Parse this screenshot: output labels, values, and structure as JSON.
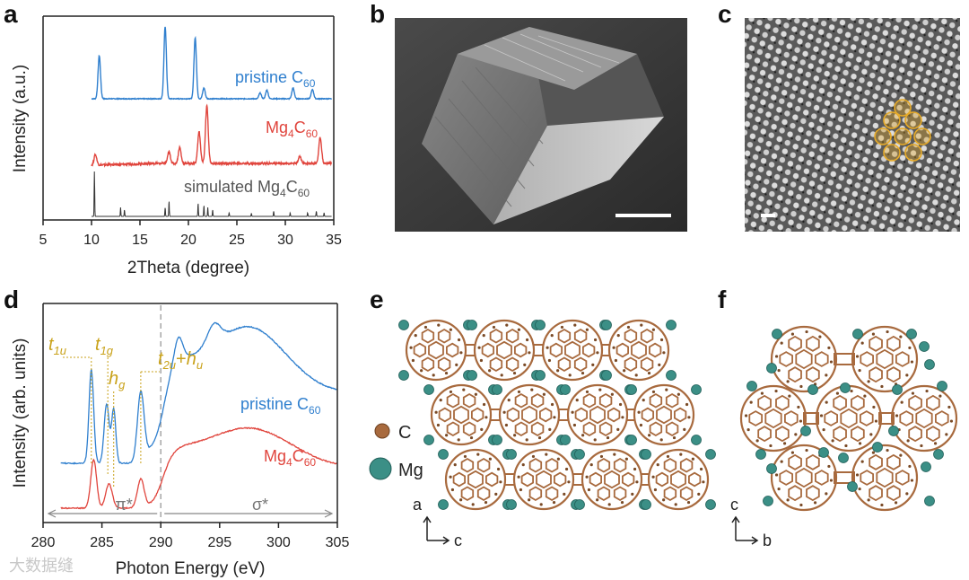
{
  "panels": {
    "a": "a",
    "b": "b",
    "c": "c",
    "d": "d",
    "e": "e",
    "f": "f"
  },
  "colors": {
    "pristine": "#2f7fce",
    "mg4c60": "#e0443c",
    "simulated": "#333333",
    "annotation": "#c9a21a",
    "carbon": "#a86a3e",
    "magnesium": "#3b8f86"
  },
  "chart_a": {
    "type": "line",
    "xlabel": "2Theta (degree)",
    "ylabel": "Intensity (a.u.)",
    "xlim": [
      5,
      35
    ],
    "xticks": [
      5,
      10,
      15,
      20,
      25,
      30,
      35
    ],
    "series": [
      {
        "name_main": "pristine C",
        "name_sub": "60",
        "peaks": [
          [
            10.8,
            0.6
          ],
          [
            17.6,
            1.0
          ],
          [
            20.7,
            0.85
          ],
          [
            21.6,
            0.15
          ],
          [
            27.4,
            0.08
          ],
          [
            28.1,
            0.12
          ],
          [
            30.8,
            0.15
          ],
          [
            32.8,
            0.13
          ]
        ]
      },
      {
        "name_main": "Mg",
        "name_sub1": "4",
        "name_mid": "C",
        "name_sub2": "60",
        "peaks": [
          [
            10.4,
            0.18
          ],
          [
            18.0,
            0.2
          ],
          [
            19.1,
            0.28
          ],
          [
            21.1,
            0.55
          ],
          [
            21.9,
            1.0
          ],
          [
            31.5,
            0.12
          ],
          [
            33.6,
            0.45
          ]
        ]
      },
      {
        "name_main": "simulated Mg",
        "name_sub1": "4",
        "name_mid": "C",
        "name_sub2": "60",
        "peaks": [
          [
            10.3,
            1.0
          ],
          [
            13.0,
            0.2
          ],
          [
            13.4,
            0.15
          ],
          [
            17.6,
            0.2
          ],
          [
            18.0,
            0.35
          ],
          [
            21.0,
            0.3
          ],
          [
            21.6,
            0.25
          ],
          [
            22.0,
            0.2
          ],
          [
            22.5,
            0.15
          ],
          [
            24.2,
            0.08
          ],
          [
            26.5,
            0.07
          ],
          [
            28.8,
            0.12
          ],
          [
            30.5,
            0.08
          ],
          [
            32.3,
            0.08
          ],
          [
            33.2,
            0.12
          ],
          [
            34.0,
            0.08
          ]
        ]
      }
    ]
  },
  "chart_d": {
    "type": "line",
    "xlabel": "Photon Energy (eV)",
    "ylabel": "Intensity (arb. units)",
    "xlim": [
      280,
      305
    ],
    "xticks": [
      280,
      285,
      290,
      295,
      300,
      305
    ],
    "annotations": {
      "t1u": "t",
      "t1u_sub": "1u",
      "t1g": "t",
      "t1g_sub": "1g",
      "hg": "h",
      "hg_sub": "g",
      "t2u": "t",
      "t2u_sub": "2u",
      "plus": "+",
      "hu": "h",
      "hu_sub": "u"
    },
    "pi_label": "π*",
    "sigma_label": "σ*",
    "divider_x": 290,
    "series": [
      {
        "name_main": "pristine C",
        "name_sub": "60"
      },
      {
        "name_main": "Mg",
        "name_sub1": "4",
        "name_mid": "C",
        "name_sub2": "60"
      }
    ]
  },
  "legend_e": {
    "carbon_label": "C",
    "mg_label": "Mg"
  },
  "axes_e": {
    "vertical": "a",
    "horizontal": "c"
  },
  "axes_f": {
    "vertical": "c",
    "horizontal": "b"
  },
  "watermark": "大数据缝"
}
